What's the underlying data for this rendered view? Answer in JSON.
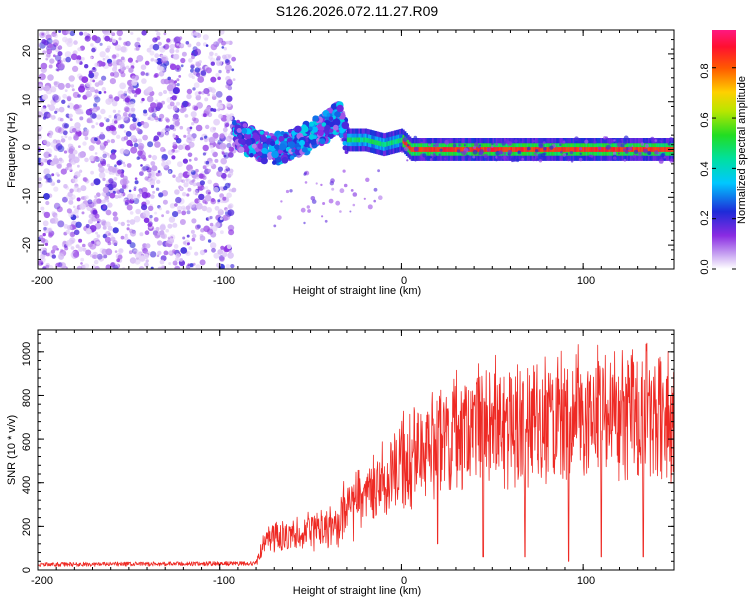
{
  "title": "S126.2026.072.11.27.R09",
  "colors": {
    "snr_line": "#ee2a24",
    "background": "#ffffff",
    "axis": "#000000"
  },
  "chart_data": [
    {
      "type": "heatmap",
      "name": "spectrogram",
      "xlabel": "Height of straight line (km)",
      "ylabel": "Frequency (Hz)",
      "xlim": [
        -200,
        150
      ],
      "ylim": [
        -25,
        25
      ],
      "x_ticks": [
        -200,
        -100,
        0,
        100
      ],
      "x_tick_labels": [
        "-200",
        "-100",
        "0",
        "100"
      ],
      "y_ticks": [
        -20,
        -10,
        0,
        10,
        20
      ],
      "y_tick_labels": [
        "-20",
        "-10",
        "0",
        "10",
        "20"
      ],
      "colorbar": {
        "label": "Normalized spectral amplitude",
        "range": [
          0,
          0.95
        ],
        "ticks": [
          0,
          0.2,
          0.4,
          0.6,
          0.8
        ],
        "tick_labels": [
          "0.0",
          "0.2",
          "0.4",
          "0.6",
          "0.8"
        ],
        "colormap": "rainbow (white → violet → blue → cyan → green → yellow → red → magenta)"
      },
      "regions": [
        {
          "description": "broadband noise",
          "x_range": [
            -200,
            -92
          ],
          "freq_range": [
            -25,
            25
          ],
          "amplitude": 0.1
        },
        {
          "description": "emerging tone",
          "x_range": [
            -92,
            -30
          ],
          "freq_center_start": 3,
          "freq_center_end": 6,
          "amplitude": 0.25
        },
        {
          "description": "steady tone",
          "x_range": [
            0,
            150
          ],
          "freq_center": 0,
          "amplitude": 0.9
        }
      ],
      "tone_track": [
        {
          "x": -90,
          "f": 3
        },
        {
          "x": -80,
          "f": 1
        },
        {
          "x": -70,
          "f": 0
        },
        {
          "x": -60,
          "f": 1
        },
        {
          "x": -50,
          "f": 3
        },
        {
          "x": -40,
          "f": 5
        },
        {
          "x": -34,
          "f": 7
        },
        {
          "x": -30,
          "f": 2
        },
        {
          "x": -20,
          "f": 2
        },
        {
          "x": -10,
          "f": 1
        },
        {
          "x": 0,
          "f": 2
        },
        {
          "x": 5,
          "f": 0
        },
        {
          "x": 150,
          "f": 0
        }
      ]
    },
    {
      "type": "line",
      "name": "snr",
      "xlabel": "Height of straight line (km)",
      "ylabel": "SNR (10 * v/v)",
      "xlim": [
        -200,
        150
      ],
      "ylim": [
        0,
        1100
      ],
      "x_ticks": [
        -200,
        -100,
        0,
        100
      ],
      "x_tick_labels": [
        "-200",
        "-100",
        "0",
        "100"
      ],
      "y_ticks": [
        0,
        200,
        400,
        600,
        800,
        1000
      ],
      "y_tick_labels": [
        "0",
        "200",
        "400",
        "600",
        "800",
        "1000"
      ],
      "trend": [
        {
          "x": -200,
          "y": 25
        },
        {
          "x": -80,
          "y": 30
        },
        {
          "x": -75,
          "y": 150
        },
        {
          "x": -60,
          "y": 180
        },
        {
          "x": -40,
          "y": 200
        },
        {
          "x": -30,
          "y": 300
        },
        {
          "x": -10,
          "y": 430
        },
        {
          "x": 10,
          "y": 600
        },
        {
          "x": 30,
          "y": 700
        },
        {
          "x": 60,
          "y": 730
        },
        {
          "x": 100,
          "y": 760
        },
        {
          "x": 150,
          "y": 780
        }
      ],
      "spikes": [
        {
          "x": 20,
          "y": 120
        },
        {
          "x": 45,
          "y": 60
        },
        {
          "x": 68,
          "y": 60
        },
        {
          "x": 92,
          "y": 40
        },
        {
          "x": 110,
          "y": 60
        },
        {
          "x": 133,
          "y": 60
        }
      ]
    }
  ]
}
